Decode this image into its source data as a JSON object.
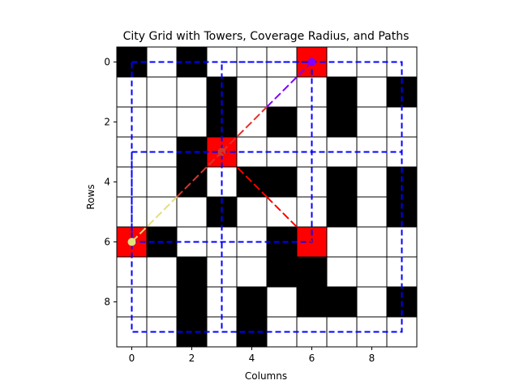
{
  "chart_data": {
    "type": "heatmap",
    "title": "City Grid with Towers, Coverage Radius, and Paths",
    "xlabel": "Columns",
    "ylabel": "Rows",
    "xlim": [
      -0.5,
      9.5
    ],
    "ylim": [
      9.5,
      -0.5
    ],
    "x_ticks": [
      0,
      2,
      4,
      6,
      8
    ],
    "y_ticks": [
      0,
      2,
      4,
      6,
      8
    ],
    "cell_values_legend": {
      "0": "open",
      "1": "building",
      "2": "tower"
    },
    "grid": [
      [
        1,
        0,
        1,
        0,
        0,
        0,
        2,
        0,
        0,
        0
      ],
      [
        0,
        0,
        0,
        1,
        0,
        0,
        0,
        1,
        0,
        1
      ],
      [
        0,
        0,
        0,
        1,
        0,
        1,
        0,
        1,
        0,
        0
      ],
      [
        0,
        0,
        1,
        2,
        0,
        0,
        0,
        0,
        0,
        0
      ],
      [
        0,
        0,
        1,
        0,
        1,
        1,
        0,
        1,
        0,
        1
      ],
      [
        0,
        0,
        0,
        1,
        0,
        0,
        0,
        1,
        0,
        1
      ],
      [
        2,
        1,
        0,
        0,
        0,
        1,
        2,
        0,
        0,
        0
      ],
      [
        0,
        0,
        1,
        0,
        0,
        1,
        1,
        0,
        0,
        0
      ],
      [
        0,
        0,
        1,
        0,
        1,
        0,
        1,
        1,
        0,
        1
      ],
      [
        0,
        0,
        1,
        0,
        1,
        0,
        0,
        0,
        0,
        0
      ]
    ],
    "cell_colors": {
      "open": "#ffffff",
      "building": "#000000",
      "tower": "#ff0000",
      "gridline": "#000000"
    },
    "coverage_rectangles": {
      "color": "#0000ff",
      "style": "dashed",
      "rects": [
        {
          "x0": 3,
          "x1": 9,
          "y0": 0,
          "y1": 9
        },
        {
          "x0": 0,
          "x1": 9,
          "y0": 3,
          "y1": 9
        },
        {
          "x0": 0,
          "x1": 6,
          "y0": 0,
          "y1": 6
        }
      ]
    },
    "paths": [
      {
        "points": [
          [
            3,
            3
          ],
          [
            6,
            0
          ]
        ],
        "colors": [
          "#e0312a",
          "#8000ff"
        ],
        "markers": [
          [
            3,
            3
          ],
          [
            6,
            0
          ]
        ]
      },
      {
        "points": [
          [
            0,
            6
          ],
          [
            3,
            3
          ]
        ],
        "colors": [
          "#e0e080",
          "#cf3a2c"
        ],
        "markers": [
          [
            0,
            6
          ],
          [
            3,
            3
          ]
        ]
      },
      {
        "points": [
          [
            3,
            3
          ],
          [
            6,
            6
          ]
        ],
        "colors": [
          "#ff0000",
          "#ff0000"
        ],
        "markers": []
      }
    ]
  }
}
